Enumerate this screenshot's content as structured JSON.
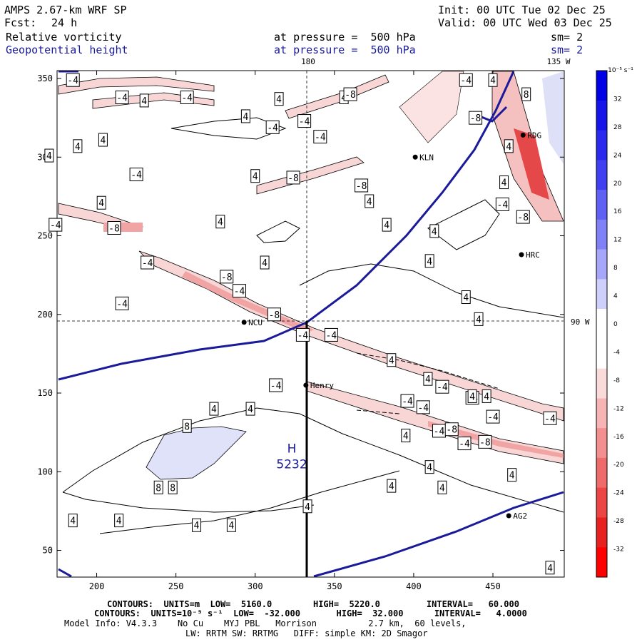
{
  "header": {
    "model": "AMPS 2.67-km WRF SP",
    "fcst_label": "Fcst:",
    "fcst_value": "24 h",
    "init": "Init: 00 UTC Tue 02 Dec 25",
    "valid": "Valid: 00 UTC Wed 03 Dec 25",
    "field1": "Relative vorticity",
    "field2": "Geopotential height",
    "pressure1": "at pressure =  500 hPa",
    "pressure2": "at pressure =  500 hPa",
    "sm1": "sm= 2",
    "sm2": "sm= 2"
  },
  "colorbar": {
    "unit_label": "10⁻⁵ s⁻¹",
    "ticks": [
      "32",
      "28",
      "24",
      "20",
      "16",
      "12",
      "8",
      "4",
      "0",
      "-4",
      "-8",
      "-12",
      "-16",
      "-20",
      "-24",
      "-28",
      "-32"
    ],
    "colors": [
      "#0000e6",
      "#1515ea",
      "#2a2aee",
      "#4040f2",
      "#6060f5",
      "#8080f7",
      "#a6a6fa",
      "#cfcffc",
      "#ffffff",
      "#ffffff",
      "#fbdada",
      "#f7b4b4",
      "#f38f8f",
      "#ef6a6a",
      "#eb4545",
      "#e72020",
      "#ff0000"
    ]
  },
  "chart_data": {
    "type": "contour",
    "title": "Relative vorticity / Geopotential height at 500 hPa",
    "xlim": [
      175,
      495
    ],
    "ylim": [
      33,
      355
    ],
    "xticks": [
      200,
      250,
      300,
      350,
      400,
      450
    ],
    "yticks": [
      50,
      100,
      150,
      200,
      250,
      300,
      350
    ],
    "grid_labels": {
      "lon180": "180",
      "lon135W": "135 W",
      "lat90W": "90 W"
    },
    "high": {
      "letter": "H",
      "value": "5232",
      "x": 315,
      "y": 103
    },
    "stations": [
      {
        "name": "KLN",
        "x": 401,
        "y": 300
      },
      {
        "name": "RDG",
        "x": 469,
        "y": 314
      },
      {
        "name": "HRC",
        "x": 468,
        "y": 238
      },
      {
        "name": "NCU",
        "x": 293,
        "y": 195
      },
      {
        "name": "Henry",
        "x": 332,
        "y": 155
      },
      {
        "name": "AG2",
        "x": 460,
        "y": 72
      }
    ],
    "pole": {
      "x": 332,
      "y": 196
    },
    "vorticity_labels": [
      {
        "t": "-4",
        "x": 185,
        "y": 349
      },
      {
        "t": "-4",
        "x": 216,
        "y": 338
      },
      {
        "t": "4",
        "x": 230,
        "y": 336
      },
      {
        "t": "-4",
        "x": 257,
        "y": 338
      },
      {
        "t": "4",
        "x": 294,
        "y": 326
      },
      {
        "t": "4",
        "x": 315,
        "y": 337
      },
      {
        "t": "-4",
        "x": 311,
        "y": 319
      },
      {
        "t": "-4",
        "x": 331,
        "y": 323
      },
      {
        "t": "4",
        "x": 356,
        "y": 338
      },
      {
        "t": "4",
        "x": 204,
        "y": 311
      },
      {
        "t": "4",
        "x": 188,
        "y": 307
      },
      {
        "t": "4",
        "x": 170,
        "y": 301
      },
      {
        "t": "-4",
        "x": 225,
        "y": 289
      },
      {
        "t": "4",
        "x": 300,
        "y": 288
      },
      {
        "t": "-8",
        "x": 324,
        "y": 287
      },
      {
        "t": "-4",
        "x": 341,
        "y": 313
      },
      {
        "t": "-8",
        "x": 360,
        "y": 340
      },
      {
        "t": "-8",
        "x": 367,
        "y": 282
      },
      {
        "t": "4",
        "x": 203,
        "y": 271
      },
      {
        "t": "-4",
        "x": 174,
        "y": 257
      },
      {
        "t": "-8",
        "x": 211,
        "y": 255
      },
      {
        "t": "4",
        "x": 278,
        "y": 259
      },
      {
        "t": "4",
        "x": 372,
        "y": 272
      },
      {
        "t": "4",
        "x": 383,
        "y": 257
      },
      {
        "t": "-4",
        "x": 433,
        "y": 349
      },
      {
        "t": "4",
        "x": 450,
        "y": 349
      },
      {
        "t": "-8",
        "x": 439,
        "y": 325
      },
      {
        "t": "4",
        "x": 457,
        "y": 284
      },
      {
        "t": "-4",
        "x": 456,
        "y": 270
      },
      {
        "t": "-8",
        "x": 469,
        "y": 262
      },
      {
        "t": "4",
        "x": 460,
        "y": 307
      },
      {
        "t": "8",
        "x": 471,
        "y": 340
      },
      {
        "t": "4",
        "x": 413,
        "y": 253
      },
      {
        "t": "4",
        "x": 410,
        "y": 234
      },
      {
        "t": "4",
        "x": 306,
        "y": 233
      },
      {
        "t": "-4",
        "x": 232,
        "y": 233
      },
      {
        "t": "-8",
        "x": 282,
        "y": 224
      },
      {
        "t": "-4",
        "x": 290,
        "y": 215
      },
      {
        "t": "-4",
        "x": 216,
        "y": 207
      },
      {
        "t": "-8",
        "x": 312,
        "y": 200
      },
      {
        "t": "4",
        "x": 433,
        "y": 211
      },
      {
        "t": "4",
        "x": 441,
        "y": 197
      },
      {
        "t": "-4",
        "x": 330,
        "y": 187
      },
      {
        "t": "-4",
        "x": 348,
        "y": 187
      },
      {
        "t": "4",
        "x": 386,
        "y": 171
      },
      {
        "t": "4",
        "x": 409,
        "y": 159
      },
      {
        "t": "-4",
        "x": 418,
        "y": 154
      },
      {
        "t": "4",
        "x": 446,
        "y": 148
      },
      {
        "t": "-4",
        "x": 437,
        "y": 147
      },
      {
        "t": "4",
        "x": 437,
        "y": 148
      },
      {
        "t": "-4",
        "x": 450,
        "y": 135
      },
      {
        "t": "-4",
        "x": 313,
        "y": 155
      },
      {
        "t": "4",
        "x": 274,
        "y": 140
      },
      {
        "t": "4",
        "x": 297,
        "y": 140
      },
      {
        "t": "-4",
        "x": 396,
        "y": 145
      },
      {
        "t": "-4",
        "x": 406,
        "y": 141
      },
      {
        "t": "-4",
        "x": 416,
        "y": 126
      },
      {
        "t": "-8",
        "x": 424,
        "y": 127
      },
      {
        "t": "4",
        "x": 395,
        "y": 123
      },
      {
        "t": "-4",
        "x": 432,
        "y": 118
      },
      {
        "t": "-8",
        "x": 445,
        "y": 119
      },
      {
        "t": "-4",
        "x": 486,
        "y": 134
      },
      {
        "t": "8",
        "x": 257,
        "y": 129
      },
      {
        "t": "4",
        "x": 410,
        "y": 103
      },
      {
        "t": "4",
        "x": 462,
        "y": 98
      },
      {
        "t": "8",
        "x": 239,
        "y": 90
      },
      {
        "t": "8",
        "x": 248,
        "y": 90
      },
      {
        "t": "4",
        "x": 386,
        "y": 91
      },
      {
        "t": "4",
        "x": 418,
        "y": 90
      },
      {
        "t": "4",
        "x": 333,
        "y": 78
      },
      {
        "t": "4",
        "x": 185,
        "y": 69
      },
      {
        "t": "4",
        "x": 214,
        "y": 69
      },
      {
        "t": "4",
        "x": 263,
        "y": 66
      },
      {
        "t": "4",
        "x": 285,
        "y": 66
      },
      {
        "t": "4",
        "x": 486,
        "y": 39
      }
    ]
  },
  "footer": {
    "line1": "CONTOURS:  UNITS=m  LOW=  5160.0        HIGH=  5220.0         INTERVAL=   60.000",
    "line2": "CONTOURS:  UNITS=10⁻⁵ s⁻¹  LOW=  -32.000       HIGH=  32.000      INTERVAL=   4.0000",
    "line3": "Model Info: V4.3.3    No Cu    MYJ PBL   Morrison          2.7 km,  60 levels,",
    "line4": "LW: RRTM SW: RRTMG   DIFF: simple KM: 2D Smagor"
  }
}
